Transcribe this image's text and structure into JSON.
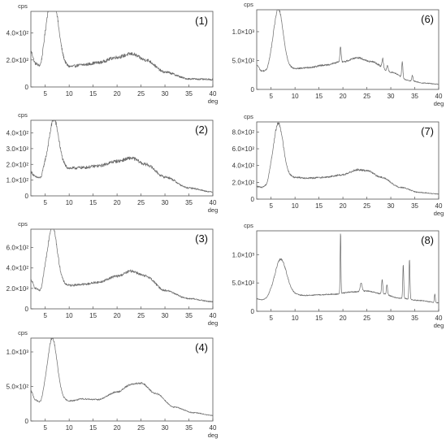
{
  "figure": {
    "background": "#ffffff",
    "trace_color": "#6a6a6a",
    "frame_color": "#555555"
  },
  "chart_data": [
    {
      "type": "line",
      "label": "(1)",
      "ylabel": "cps",
      "xlabel": "deg",
      "xlim": [
        2,
        40
      ],
      "ylim": [
        0,
        560
      ],
      "xticks": [
        5,
        10,
        15,
        20,
        25,
        30,
        35,
        40
      ],
      "yticks": [
        {
          "value": 0,
          "label": "0"
        },
        {
          "value": 200,
          "label": "2.0×10²"
        },
        {
          "value": 400,
          "label": "4.0×10²"
        }
      ],
      "peaks": [
        {
          "x": 6.5,
          "y": 530,
          "width": 1.1
        }
      ],
      "background_curve": [
        [
          2,
          260
        ],
        [
          3,
          170
        ],
        [
          4,
          130
        ],
        [
          5,
          200
        ],
        [
          8,
          180
        ],
        [
          10,
          150
        ],
        [
          13,
          165
        ],
        [
          16,
          180
        ],
        [
          20,
          220
        ],
        [
          23,
          245
        ],
        [
          26,
          200
        ],
        [
          30,
          110
        ],
        [
          35,
          60
        ],
        [
          40,
          55
        ]
      ],
      "noise": 12
    },
    {
      "type": "line",
      "label": "(2)",
      "ylabel": "cps",
      "xlabel": "deg",
      "xlim": [
        2,
        40
      ],
      "ylim": [
        0,
        480
      ],
      "xticks": [
        5,
        10,
        15,
        20,
        25,
        30,
        35,
        40
      ],
      "yticks": [
        {
          "value": 0,
          "label": "0"
        },
        {
          "value": 100,
          "label": "1.0×10²"
        },
        {
          "value": 200,
          "label": "2.0×10²"
        },
        {
          "value": 300,
          "label": "3.0×10²"
        },
        {
          "value": 400,
          "label": "4.0×10²"
        }
      ],
      "peaks": [
        {
          "x": 6.8,
          "y": 310,
          "width": 1.0
        }
      ],
      "background_curve": [
        [
          2,
          150
        ],
        [
          3,
          120
        ],
        [
          4,
          110
        ],
        [
          5,
          170
        ],
        [
          8,
          180
        ],
        [
          10,
          175
        ],
        [
          13,
          180
        ],
        [
          16,
          190
        ],
        [
          20,
          220
        ],
        [
          23,
          240
        ],
        [
          26,
          200
        ],
        [
          30,
          120
        ],
        [
          35,
          50
        ],
        [
          40,
          25
        ]
      ],
      "noise": 10
    },
    {
      "type": "line",
      "label": "(3)",
      "ylabel": "cps",
      "xlabel": "deg",
      "xlim": [
        2,
        40
      ],
      "ylim": [
        0,
        780
      ],
      "xticks": [
        5,
        10,
        15,
        20,
        25,
        30,
        35,
        40
      ],
      "yticks": [
        {
          "value": 0,
          "label": "0"
        },
        {
          "value": 200,
          "label": "2.0×10²"
        },
        {
          "value": 400,
          "label": "4.0×10²"
        },
        {
          "value": 600,
          "label": "6.0×10²"
        }
      ],
      "peaks": [
        {
          "x": 6.5,
          "y": 560,
          "width": 1.0
        }
      ],
      "background_curve": [
        [
          2,
          280
        ],
        [
          3,
          200
        ],
        [
          4,
          160
        ],
        [
          5,
          260
        ],
        [
          8,
          240
        ],
        [
          10,
          230
        ],
        [
          13,
          240
        ],
        [
          16,
          260
        ],
        [
          20,
          320
        ],
        [
          23,
          370
        ],
        [
          26,
          320
        ],
        [
          30,
          180
        ],
        [
          35,
          100
        ],
        [
          40,
          70
        ]
      ],
      "noise": 10
    },
    {
      "type": "line",
      "label": "(4)",
      "ylabel": "cps",
      "xlabel": "deg",
      "xlim": [
        2,
        40
      ],
      "ylim": [
        0,
        1200
      ],
      "xticks": [
        5,
        10,
        15,
        20,
        25,
        30,
        35,
        40
      ],
      "yticks": [
        {
          "value": 0,
          "label": "0"
        },
        {
          "value": 500,
          "label": "5.0×10²"
        },
        {
          "value": 1000,
          "label": "1.0×10³"
        }
      ],
      "peaks": [
        {
          "x": 6.5,
          "y": 880,
          "width": 1.0
        }
      ],
      "background_curve": [
        [
          2,
          430
        ],
        [
          3,
          300
        ],
        [
          4,
          250
        ],
        [
          5,
          340
        ],
        [
          8,
          300
        ],
        [
          10,
          290
        ],
        [
          13,
          320
        ],
        [
          16,
          310
        ],
        [
          20,
          420
        ],
        [
          23,
          530
        ],
        [
          25,
          550
        ],
        [
          28,
          400
        ],
        [
          32,
          200
        ],
        [
          36,
          120
        ],
        [
          40,
          80
        ]
      ],
      "noise": 8
    },
    {
      "type": "line",
      "label": "(6)",
      "ylabel": "cps",
      "xlabel": "deg",
      "xlim": [
        2,
        40
      ],
      "ylim": [
        0,
        1380
      ],
      "xticks": [
        5,
        10,
        15,
        20,
        25,
        30,
        35,
        40
      ],
      "yticks": [
        {
          "value": 0,
          "label": "0"
        },
        {
          "value": 500,
          "label": "5.0×10²"
        },
        {
          "value": 1000,
          "label": "1.0×10³"
        }
      ],
      "peaks": [
        {
          "x": 6.5,
          "y": 1020,
          "width": 1.0
        },
        {
          "x": 19.5,
          "y": 280,
          "width": 0.12
        },
        {
          "x": 28.3,
          "y": 170,
          "width": 0.15
        },
        {
          "x": 29.3,
          "y": 100,
          "width": 0.15
        },
        {
          "x": 32.4,
          "y": 280,
          "width": 0.12
        },
        {
          "x": 34.5,
          "y": 100,
          "width": 0.12
        }
      ],
      "background_curve": [
        [
          2,
          420
        ],
        [
          3,
          320
        ],
        [
          4,
          300
        ],
        [
          5,
          360
        ],
        [
          8,
          380
        ],
        [
          10,
          360
        ],
        [
          13,
          380
        ],
        [
          16,
          420
        ],
        [
          20,
          480
        ],
        [
          23,
          550
        ],
        [
          26,
          480
        ],
        [
          30,
          300
        ],
        [
          34,
          150
        ],
        [
          37,
          110
        ],
        [
          40,
          90
        ]
      ],
      "noise": 10
    },
    {
      "type": "line",
      "label": "(7)",
      "ylabel": "cps",
      "xlabel": "deg",
      "xlim": [
        2,
        40
      ],
      "ylim": [
        0,
        920
      ],
      "xticks": [
        5,
        10,
        15,
        20,
        25,
        30,
        35,
        40
      ],
      "yticks": [
        {
          "value": 0,
          "label": "0"
        },
        {
          "value": 200,
          "label": "2.0×10²"
        },
        {
          "value": 400,
          "label": "4.0×10²"
        },
        {
          "value": 600,
          "label": "6.0×10²"
        },
        {
          "value": 800,
          "label": "8.0×10²"
        }
      ],
      "peaks": [
        {
          "x": 6.5,
          "y": 650,
          "width": 1.0
        }
      ],
      "background_curve": [
        [
          2,
          150
        ],
        [
          3,
          140
        ],
        [
          4,
          150
        ],
        [
          5,
          240
        ],
        [
          8,
          270
        ],
        [
          10,
          260
        ],
        [
          13,
          250
        ],
        [
          16,
          260
        ],
        [
          20,
          290
        ],
        [
          23,
          350
        ],
        [
          25,
          340
        ],
        [
          28,
          260
        ],
        [
          32,
          140
        ],
        [
          36,
          80
        ],
        [
          40,
          60
        ]
      ],
      "noise": 9
    },
    {
      "type": "line",
      "label": "(8)",
      "ylabel": "cps",
      "xlabel": "deg",
      "xlim": [
        2,
        40
      ],
      "ylim": [
        0,
        1420
      ],
      "xticks": [
        5,
        10,
        15,
        20,
        25,
        30,
        35,
        40
      ],
      "yticks": [
        {
          "value": 0,
          "label": "0"
        },
        {
          "value": 500,
          "label": "5.0×10²"
        },
        {
          "value": 1000,
          "label": "1.0×10³"
        }
      ],
      "peaks": [
        {
          "x": 7.0,
          "y": 640,
          "width": 1.2
        },
        {
          "x": 19.5,
          "y": 1100,
          "width": 0.08
        },
        {
          "x": 23.8,
          "y": 140,
          "width": 0.2
        },
        {
          "x": 28.2,
          "y": 260,
          "width": 0.12
        },
        {
          "x": 29.2,
          "y": 180,
          "width": 0.12
        },
        {
          "x": 32.6,
          "y": 600,
          "width": 0.1
        },
        {
          "x": 33.9,
          "y": 700,
          "width": 0.1
        },
        {
          "x": 39.2,
          "y": 150,
          "width": 0.1
        }
      ],
      "background_curve": [
        [
          2,
          220
        ],
        [
          3,
          200
        ],
        [
          4,
          210
        ],
        [
          5,
          260
        ],
        [
          9,
          300
        ],
        [
          12,
          280
        ],
        [
          15,
          290
        ],
        [
          18,
          300
        ],
        [
          22,
          340
        ],
        [
          25,
          360
        ],
        [
          28,
          310
        ],
        [
          32,
          230
        ],
        [
          36,
          190
        ],
        [
          40,
          150
        ]
      ],
      "noise": 8
    }
  ]
}
